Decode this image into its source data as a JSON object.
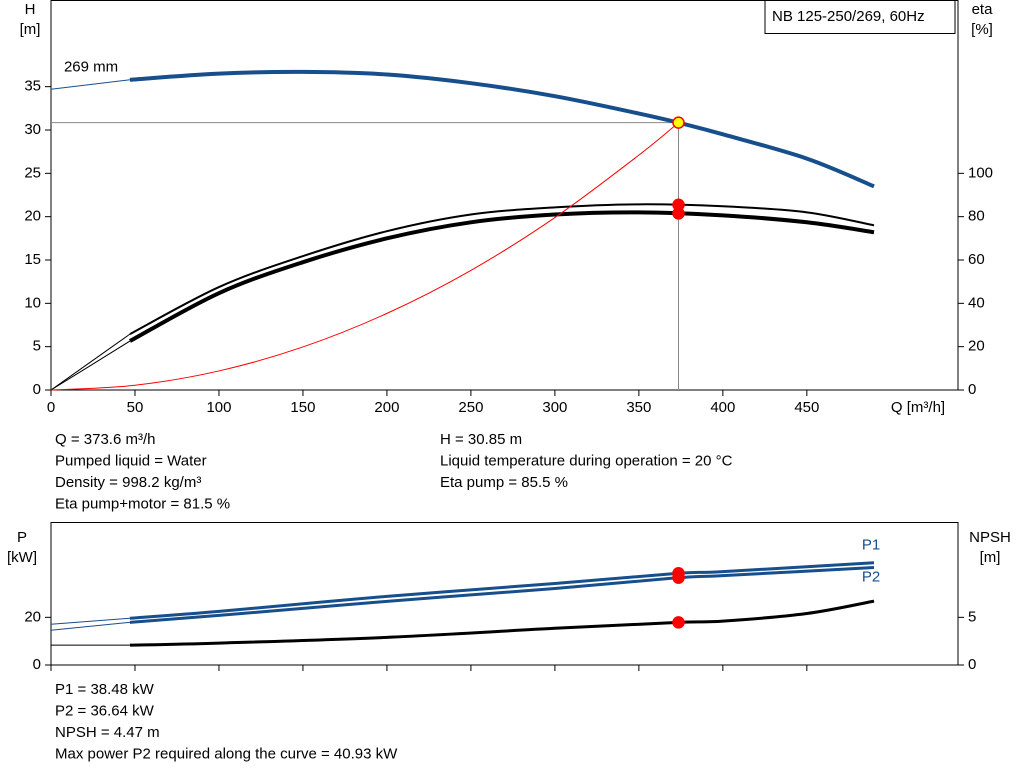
{
  "chart_data": [
    {
      "type": "line",
      "xlabel": "Q [m³/h]",
      "ylabel": [
        "H",
        "[m]"
      ],
      "y2label": [
        "eta",
        "[%]"
      ],
      "legend": "NB 125-250/269, 60Hz",
      "xlim": [
        0,
        540
      ],
      "xticks": [
        0,
        50,
        100,
        150,
        200,
        250,
        300,
        350,
        400,
        450
      ],
      "ylim": [
        0,
        45
      ],
      "yticks": [
        0,
        5,
        10,
        15,
        20,
        25,
        30,
        35
      ],
      "y2lim": [
        0,
        180
      ],
      "y2ticks": [
        0,
        20,
        40,
        60,
        80,
        100
      ],
      "series": [
        {
          "name": "269 mm",
          "color": "#174e8c",
          "width": 4,
          "x": [
            47,
            100,
            150,
            200,
            250,
            300,
            350,
            373.6,
            400,
            450,
            490
          ],
          "values": [
            35.8,
            36.5,
            36.7,
            36.4,
            35.4,
            33.9,
            31.9,
            30.85,
            29.5,
            26.7,
            23.5
          ]
        },
        {
          "color": "#174e8c",
          "width": 1,
          "x": [
            0,
            47
          ],
          "values": [
            34.7,
            35.8
          ]
        },
        {
          "color": "#000000",
          "width": 2,
          "axis": "y2",
          "x": [
            47,
            100,
            150,
            200,
            250,
            300,
            350,
            400,
            450,
            490
          ],
          "values": [
            25.8,
            47.5,
            61.8,
            73.3,
            81,
            84.3,
            85.7,
            84.8,
            82,
            76
          ]
        },
        {
          "color": "#000000",
          "width": 4,
          "axis": "y2",
          "x": [
            47,
            100,
            150,
            200,
            250,
            300,
            350,
            400,
            450,
            490
          ],
          "values": [
            22.6,
            44.7,
            59,
            70,
            77.4,
            81,
            82,
            80.6,
            77.4,
            72.8
          ]
        },
        {
          "color": "#000000",
          "width": 1,
          "axis": "y2",
          "x": [
            0,
            47
          ],
          "values": [
            0,
            25.8
          ]
        },
        {
          "color": "#000000",
          "width": 1,
          "axis": "y2",
          "x": [
            0,
            47
          ],
          "values": [
            0,
            22.6
          ]
        },
        {
          "color": "#ff0000",
          "width": 1,
          "x": [
            0,
            50,
            100,
            150,
            200,
            250,
            300,
            350,
            373.6
          ],
          "values": [
            0,
            0.55,
            2.2,
            4.97,
            8.84,
            13.8,
            19.9,
            27.1,
            30.85
          ]
        }
      ],
      "points": [
        {
          "x": 373.6,
          "y": 30.85,
          "color": "#ffff00",
          "stroke": "#ff0000",
          "guide": true
        },
        {
          "x": 373.6,
          "y": 85.5,
          "axis": "y2",
          "color": "#ff0000"
        },
        {
          "x": 373.6,
          "y": 81.5,
          "axis": "y2",
          "color": "#ff0000"
        }
      ],
      "annotations": [
        [
          "Q = 373.6 m³/h",
          "Pumped liquid = Water",
          "Density = 998.2 kg/m³",
          "Eta pump+motor = 81.5 %"
        ],
        [
          "H = 30.85 m",
          "Liquid temperature during operation = 20 °C",
          "Eta pump = 85.5 %"
        ]
      ]
    },
    {
      "type": "line",
      "ylabel": [
        "P",
        "[kW]"
      ],
      "y2label": [
        "NPSH",
        "[m]"
      ],
      "xlim": [
        0,
        540
      ],
      "ylim": [
        0,
        60
      ],
      "yticks": [
        0,
        20
      ],
      "y2lim": [
        0,
        15
      ],
      "y2ticks": [
        0,
        5
      ],
      "series": [
        {
          "name": "P1",
          "color": "#174e8c",
          "width": 3,
          "x": [
            47,
            100,
            200,
            300,
            373.6,
            400,
            490
          ],
          "values": [
            19.6,
            22.5,
            28.8,
            34.2,
            38.48,
            39.2,
            42.9
          ]
        },
        {
          "name": "P2",
          "color": "#174e8c",
          "width": 3,
          "x": [
            47,
            100,
            200,
            300,
            373.6,
            400,
            490
          ],
          "values": [
            17.9,
            20.8,
            26.7,
            32.1,
            36.64,
            37.5,
            40.93
          ]
        },
        {
          "color": "#174e8c",
          "width": 1,
          "x": [
            0,
            47
          ],
          "values": [
            17.1,
            19.6
          ]
        },
        {
          "color": "#174e8c",
          "width": 1,
          "x": [
            0,
            47
          ],
          "values": [
            14.6,
            17.9
          ]
        },
        {
          "color": "#000000",
          "width": 3,
          "axis": "y2",
          "x": [
            47,
            100,
            200,
            300,
            373.6,
            400,
            450,
            490
          ],
          "values": [
            2.08,
            2.3,
            2.9,
            3.85,
            4.47,
            4.6,
            5.4,
            6.7
          ]
        },
        {
          "color": "#000000",
          "width": 1,
          "axis": "y2",
          "x": [
            0,
            47
          ],
          "values": [
            2.08,
            2.08
          ]
        }
      ],
      "points": [
        {
          "x": 373.6,
          "y": 38.48,
          "color": "#ff0000"
        },
        {
          "x": 373.6,
          "y": 36.64,
          "color": "#ff0000"
        },
        {
          "x": 373.6,
          "y": 4.47,
          "axis": "y2",
          "color": "#ff0000"
        }
      ],
      "annotations": [
        [
          "P1 = 38.48 kW",
          "P2 = 36.64 kW",
          "NPSH = 4.47 m",
          "Max power P2 required along the curve = 40.93 kW"
        ]
      ]
    }
  ]
}
